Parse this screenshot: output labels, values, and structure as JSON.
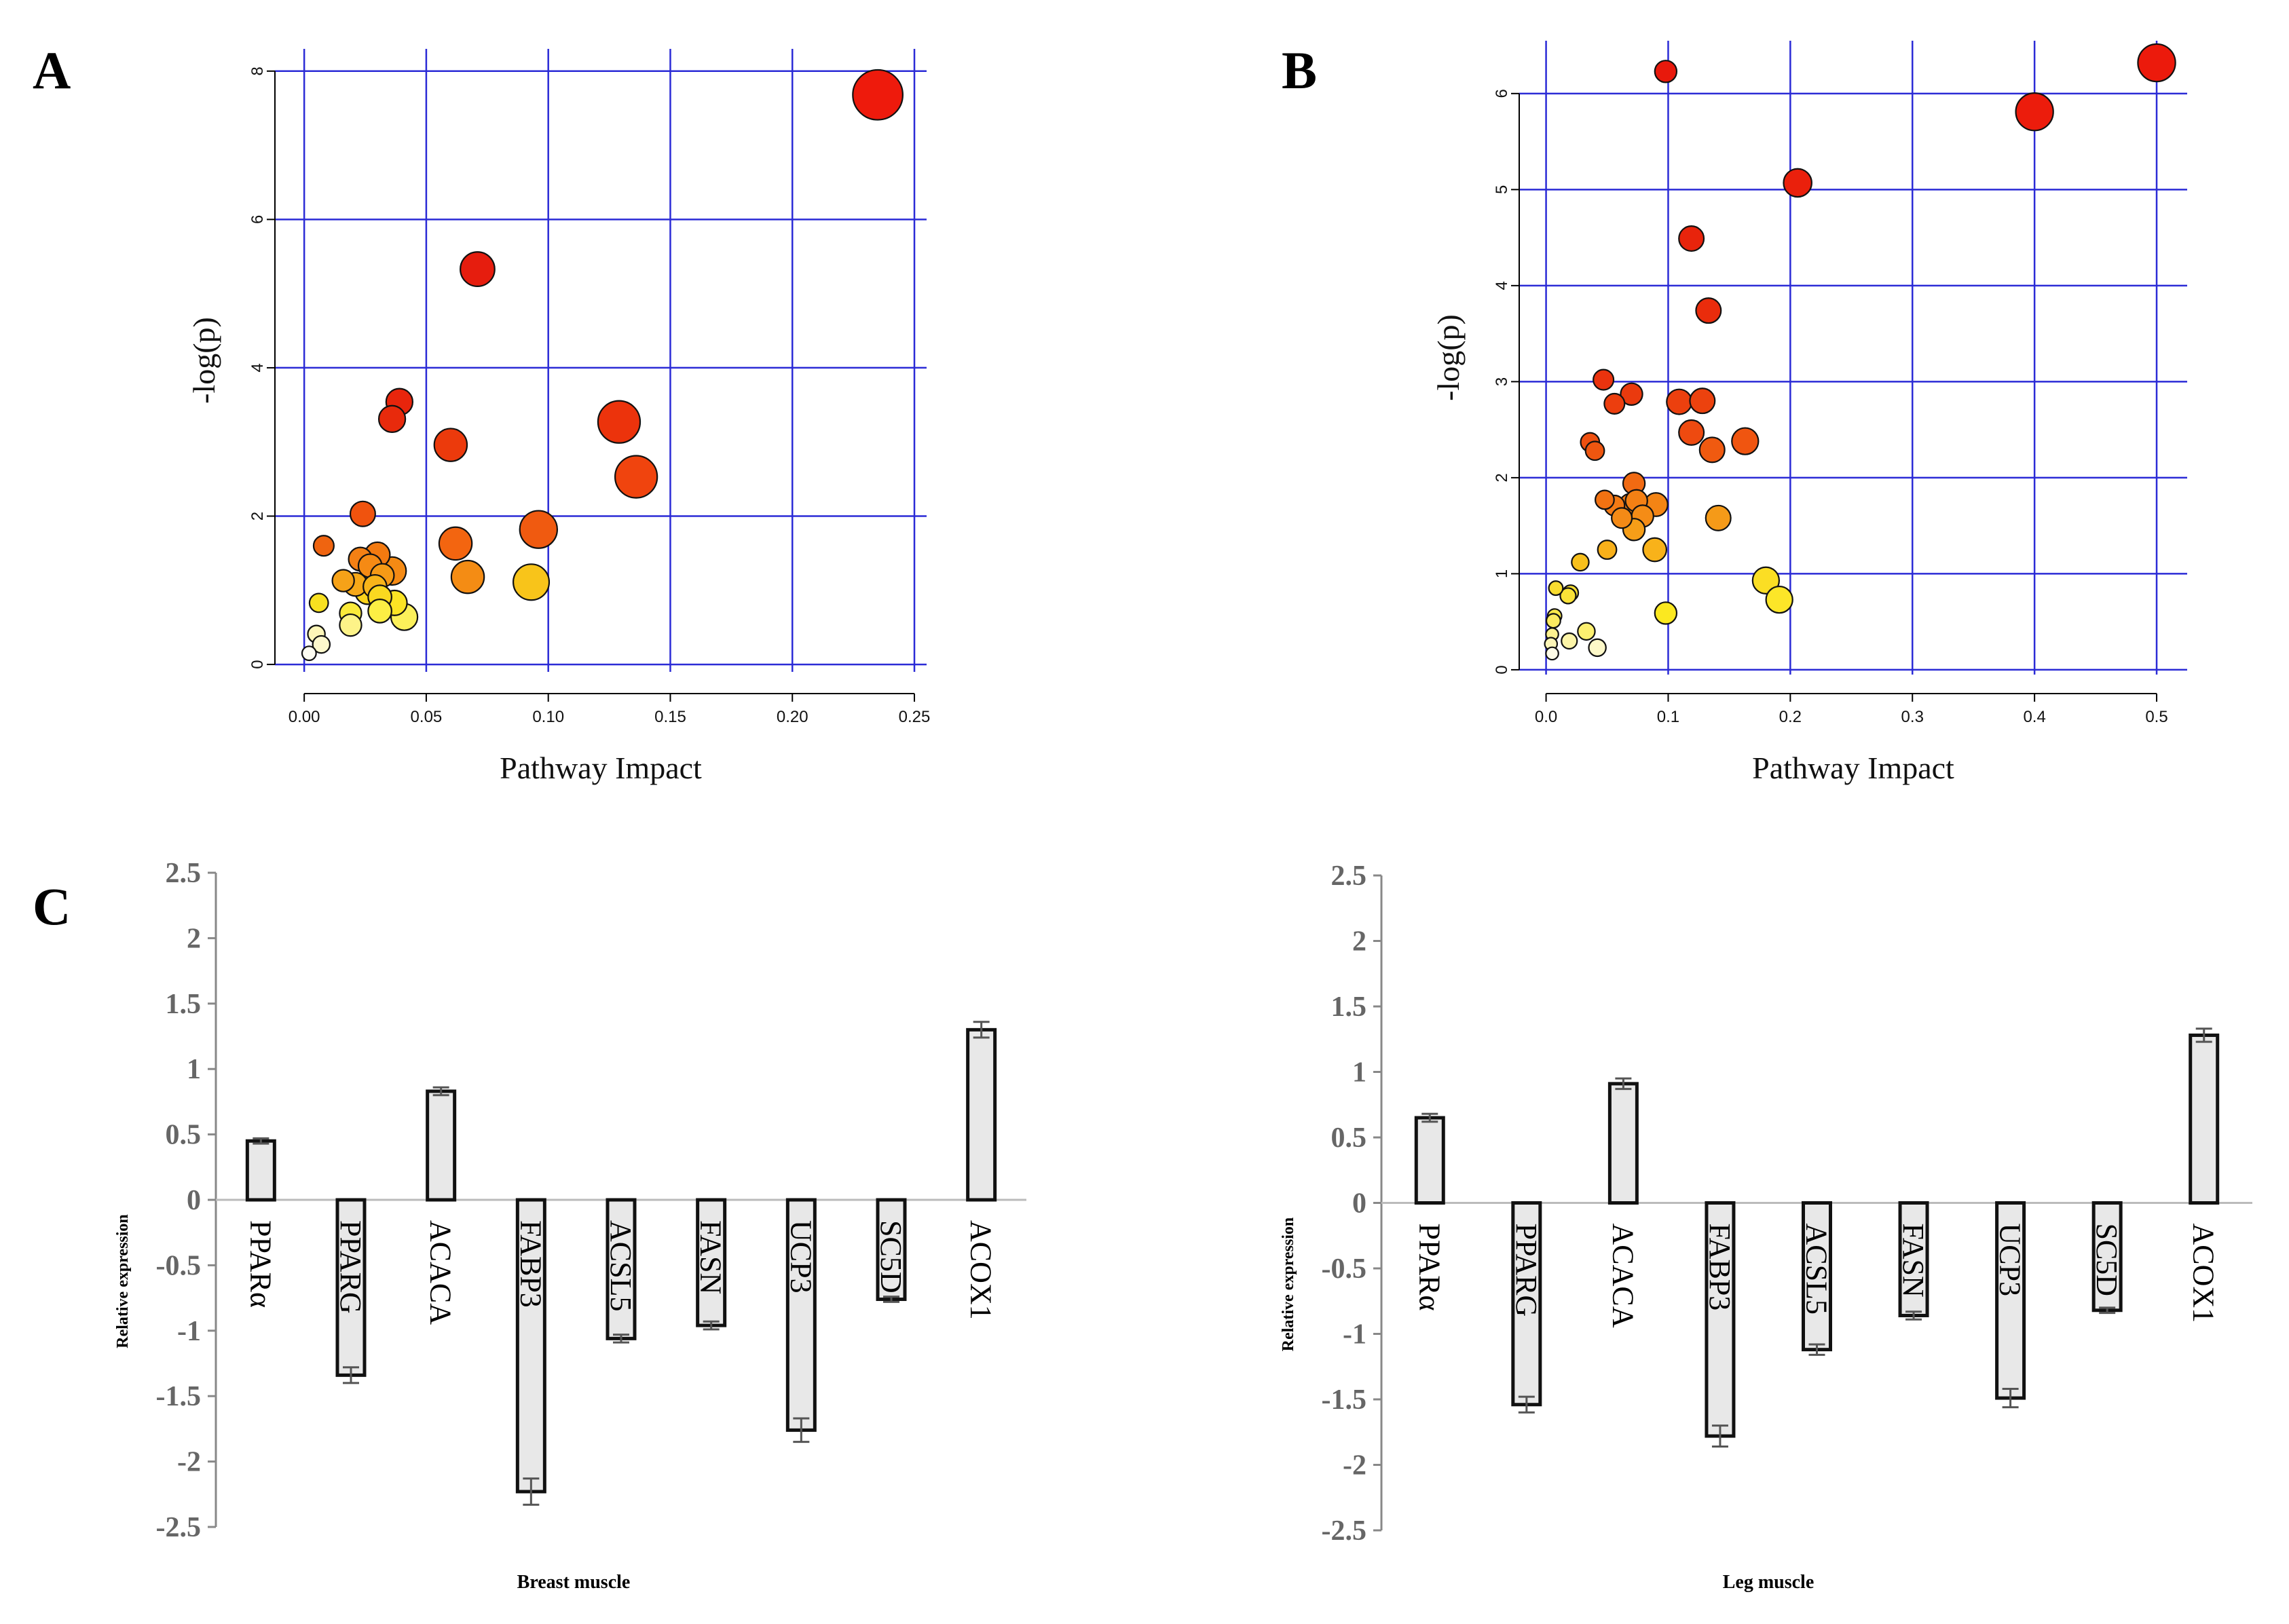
{
  "panels": {
    "A": "A",
    "B": "B",
    "C": "C"
  },
  "chart_data": [
    {
      "id": "A",
      "type": "scatter",
      "title": "",
      "xlabel": "Pathway Impact",
      "ylabel": "-log(p)",
      "xlim": [
        -0.012,
        0.255
      ],
      "ylim": [
        -0.1,
        8.3
      ],
      "xticks": [
        0.0,
        0.05,
        0.1,
        0.15,
        0.2,
        0.25
      ],
      "xtick_labels": [
        "0.00",
        "0.05",
        "0.10",
        "0.15",
        "0.20",
        "0.25"
      ],
      "yticks": [
        0,
        2,
        4,
        6,
        8
      ],
      "ytick_labels": [
        "0",
        "2",
        "4",
        "6",
        "8"
      ],
      "grid": true,
      "grid_color": "#2b2bd6",
      "points": [
        {
          "x": 0.235,
          "y": 7.68,
          "size": 3.2,
          "color": "#ee1a0c"
        },
        {
          "x": 0.071,
          "y": 5.33,
          "size": 2.2,
          "color": "#e61d0e"
        },
        {
          "x": 0.039,
          "y": 3.54,
          "size": 1.7,
          "color": "#e8250c"
        },
        {
          "x": 0.036,
          "y": 3.31,
          "size": 1.7,
          "color": "#e82a0c"
        },
        {
          "x": 0.129,
          "y": 3.27,
          "size": 2.7,
          "color": "#ec330c"
        },
        {
          "x": 0.06,
          "y": 2.96,
          "size": 2.1,
          "color": "#ec3a0c"
        },
        {
          "x": 0.136,
          "y": 2.53,
          "size": 2.7,
          "color": "#f0440e"
        },
        {
          "x": 0.024,
          "y": 2.03,
          "size": 1.6,
          "color": "#f0530e"
        },
        {
          "x": 0.096,
          "y": 1.82,
          "size": 2.4,
          "color": "#f05a10"
        },
        {
          "x": 0.062,
          "y": 1.63,
          "size": 2.1,
          "color": "#f36510"
        },
        {
          "x": 0.008,
          "y": 1.6,
          "size": 1.3,
          "color": "#ef6410"
        },
        {
          "x": 0.03,
          "y": 1.48,
          "size": 1.6,
          "color": "#f37a10"
        },
        {
          "x": 0.023,
          "y": 1.42,
          "size": 1.5,
          "color": "#f48014"
        },
        {
          "x": 0.027,
          "y": 1.33,
          "size": 1.5,
          "color": "#f58a14"
        },
        {
          "x": 0.036,
          "y": 1.26,
          "size": 1.8,
          "color": "#f48a14"
        },
        {
          "x": 0.067,
          "y": 1.18,
          "size": 2.1,
          "color": "#f48c14"
        },
        {
          "x": 0.032,
          "y": 1.2,
          "size": 1.5,
          "color": "#f69a16"
        },
        {
          "x": 0.016,
          "y": 1.13,
          "size": 1.4,
          "color": "#f6a218"
        },
        {
          "x": 0.021,
          "y": 1.08,
          "size": 1.5,
          "color": "#f6a818"
        },
        {
          "x": 0.029,
          "y": 1.05,
          "size": 1.5,
          "color": "#f8b41a"
        },
        {
          "x": 0.093,
          "y": 1.11,
          "size": 2.3,
          "color": "#f8c41a"
        },
        {
          "x": 0.026,
          "y": 0.98,
          "size": 1.6,
          "color": "#fad21c"
        },
        {
          "x": 0.031,
          "y": 0.91,
          "size": 1.5,
          "color": "#fad820"
        },
        {
          "x": 0.037,
          "y": 0.83,
          "size": 1.6,
          "color": "#fbe424"
        },
        {
          "x": 0.006,
          "y": 0.83,
          "size": 1.2,
          "color": "#f8e020"
        },
        {
          "x": 0.019,
          "y": 0.69,
          "size": 1.4,
          "color": "#fbea3a"
        },
        {
          "x": 0.031,
          "y": 0.72,
          "size": 1.5,
          "color": "#fcee44"
        },
        {
          "x": 0.041,
          "y": 0.64,
          "size": 1.7,
          "color": "#fcf05a"
        },
        {
          "x": 0.019,
          "y": 0.53,
          "size": 1.4,
          "color": "#fdf388"
        },
        {
          "x": 0.005,
          "y": 0.41,
          "size": 1.1,
          "color": "#fdf6b8"
        },
        {
          "x": 0.007,
          "y": 0.27,
          "size": 1.1,
          "color": "#fdf8cc"
        },
        {
          "x": 0.002,
          "y": 0.15,
          "size": 0.9,
          "color": "#fefdf2"
        }
      ]
    },
    {
      "id": "B",
      "type": "scatter",
      "title": "",
      "xlabel": "Pathway Impact",
      "ylabel": "-log(p)",
      "xlim": [
        -0.022,
        0.525
      ],
      "ylim": [
        -0.05,
        6.55
      ],
      "xticks": [
        0.0,
        0.1,
        0.2,
        0.3,
        0.4,
        0.5
      ],
      "xtick_labels": [
        "0.0",
        "0.1",
        "0.2",
        "0.3",
        "0.4",
        "0.5"
      ],
      "yticks": [
        0,
        1,
        2,
        3,
        4,
        5,
        6
      ],
      "ytick_labels": [
        "0",
        "1",
        "2",
        "3",
        "4",
        "5",
        "6"
      ],
      "grid": true,
      "grid_color": "#2b2bd6",
      "points": [
        {
          "x": 0.5,
          "y": 6.32,
          "size": 2.4,
          "color": "#ec1a0c"
        },
        {
          "x": 0.098,
          "y": 6.23,
          "size": 1.4,
          "color": "#e8190c"
        },
        {
          "x": 0.4,
          "y": 5.81,
          "size": 2.4,
          "color": "#ec1c0c"
        },
        {
          "x": 0.206,
          "y": 5.07,
          "size": 1.8,
          "color": "#ea200c"
        },
        {
          "x": 0.119,
          "y": 4.49,
          "size": 1.6,
          "color": "#e8240c"
        },
        {
          "x": 0.133,
          "y": 3.74,
          "size": 1.6,
          "color": "#ea2c0c"
        },
        {
          "x": 0.047,
          "y": 3.02,
          "size": 1.3,
          "color": "#ea330e"
        },
        {
          "x": 0.07,
          "y": 2.87,
          "size": 1.4,
          "color": "#ea3a0e"
        },
        {
          "x": 0.056,
          "y": 2.77,
          "size": 1.3,
          "color": "#ec3e0e"
        },
        {
          "x": 0.109,
          "y": 2.79,
          "size": 1.6,
          "color": "#ec400e"
        },
        {
          "x": 0.128,
          "y": 2.8,
          "size": 1.6,
          "color": "#ec420e"
        },
        {
          "x": 0.119,
          "y": 2.47,
          "size": 1.6,
          "color": "#ee4a10"
        },
        {
          "x": 0.163,
          "y": 2.38,
          "size": 1.7,
          "color": "#f05510"
        },
        {
          "x": 0.036,
          "y": 2.37,
          "size": 1.2,
          "color": "#ee5010"
        },
        {
          "x": 0.136,
          "y": 2.29,
          "size": 1.6,
          "color": "#f05a10"
        },
        {
          "x": 0.04,
          "y": 2.28,
          "size": 1.2,
          "color": "#ee5610"
        },
        {
          "x": 0.072,
          "y": 1.94,
          "size": 1.4,
          "color": "#f16a12"
        },
        {
          "x": 0.048,
          "y": 1.77,
          "size": 1.2,
          "color": "#f27212"
        },
        {
          "x": 0.056,
          "y": 1.71,
          "size": 1.3,
          "color": "#f37a14"
        },
        {
          "x": 0.069,
          "y": 1.72,
          "size": 1.4,
          "color": "#f37c14"
        },
        {
          "x": 0.074,
          "y": 1.76,
          "size": 1.4,
          "color": "#f38014"
        },
        {
          "x": 0.09,
          "y": 1.72,
          "size": 1.5,
          "color": "#f48414"
        },
        {
          "x": 0.062,
          "y": 1.58,
          "size": 1.3,
          "color": "#f48a16"
        },
        {
          "x": 0.079,
          "y": 1.6,
          "size": 1.4,
          "color": "#f58c16"
        },
        {
          "x": 0.141,
          "y": 1.58,
          "size": 1.6,
          "color": "#f59a18"
        },
        {
          "x": 0.072,
          "y": 1.46,
          "size": 1.4,
          "color": "#f69e18"
        },
        {
          "x": 0.05,
          "y": 1.25,
          "size": 1.2,
          "color": "#f8b01a"
        },
        {
          "x": 0.089,
          "y": 1.25,
          "size": 1.5,
          "color": "#f8b21a"
        },
        {
          "x": 0.028,
          "y": 1.12,
          "size": 1.1,
          "color": "#f8c01c"
        },
        {
          "x": 0.18,
          "y": 0.93,
          "size": 1.7,
          "color": "#fbde24"
        },
        {
          "x": 0.191,
          "y": 0.73,
          "size": 1.7,
          "color": "#fce628"
        },
        {
          "x": 0.098,
          "y": 0.59,
          "size": 1.4,
          "color": "#fbe820"
        },
        {
          "x": 0.02,
          "y": 0.8,
          "size": 1.0,
          "color": "#f8e030"
        },
        {
          "x": 0.018,
          "y": 0.77,
          "size": 1.0,
          "color": "#fae238"
        },
        {
          "x": 0.008,
          "y": 0.85,
          "size": 0.9,
          "color": "#f8dc30"
        },
        {
          "x": 0.007,
          "y": 0.56,
          "size": 0.9,
          "color": "#fce84a"
        },
        {
          "x": 0.006,
          "y": 0.51,
          "size": 0.9,
          "color": "#fcea60"
        },
        {
          "x": 0.033,
          "y": 0.4,
          "size": 1.1,
          "color": "#fdf070"
        },
        {
          "x": 0.005,
          "y": 0.37,
          "size": 0.8,
          "color": "#fdf290"
        },
        {
          "x": 0.019,
          "y": 0.3,
          "size": 1.0,
          "color": "#fdf5a8"
        },
        {
          "x": 0.004,
          "y": 0.27,
          "size": 0.8,
          "color": "#fdf6b8"
        },
        {
          "x": 0.042,
          "y": 0.23,
          "size": 1.1,
          "color": "#fdf8c8"
        },
        {
          "x": 0.005,
          "y": 0.17,
          "size": 0.8,
          "color": "#fefce8"
        }
      ]
    },
    {
      "id": "C1",
      "type": "bar",
      "title": "",
      "xlabel": "Breast muscle",
      "ylabel": "Relative expression",
      "ylim": [
        -2.5,
        2.5
      ],
      "yticks": [
        2.5,
        2,
        1.5,
        1,
        0.5,
        0,
        -0.5,
        -1,
        -1.5,
        -2,
        -2.5
      ],
      "ytick_labels": [
        "2.5",
        "2",
        "1.5",
        "1",
        "0.5",
        "0",
        "-0.5",
        "-1",
        "-1.5",
        "-2",
        "-2.5"
      ],
      "categories": [
        "PPARα",
        "PPARG",
        "ACACA",
        "FABP3",
        "ACSL5",
        "FASN",
        "UCP3",
        "SC5D",
        "ACOX1"
      ],
      "values": [
        0.45,
        -1.34,
        0.83,
        -2.23,
        -1.06,
        -0.96,
        -1.76,
        -0.76,
        1.3
      ],
      "errors": [
        0.02,
        0.06,
        0.03,
        0.1,
        0.03,
        0.03,
        0.09,
        0.02,
        0.06
      ],
      "bar_color": "#e8e8e8"
    },
    {
      "id": "C2",
      "type": "bar",
      "title": "",
      "xlabel": "Leg muscle",
      "ylabel": "Relative expression",
      "ylim": [
        -2.5,
        2.5
      ],
      "yticks": [
        2.5,
        2,
        1.5,
        1,
        0.5,
        0,
        -0.5,
        -1,
        -1.5,
        -2,
        -2.5
      ],
      "ytick_labels": [
        "2.5",
        "2",
        "1.5",
        "1",
        "0.5",
        "0",
        "-0.5",
        "-1",
        "-1.5",
        "-2",
        "-2.5"
      ],
      "categories": [
        "PPARα",
        "PPARG",
        "ACACA",
        "FABP3",
        "ACSL5",
        "FASN",
        "UCP3",
        "SC5D",
        "ACOX1"
      ],
      "values": [
        0.65,
        -1.54,
        0.91,
        -1.78,
        -1.12,
        -0.86,
        -1.49,
        -0.82,
        1.28
      ],
      "errors": [
        0.03,
        0.06,
        0.04,
        0.08,
        0.04,
        0.03,
        0.07,
        0.02,
        0.05
      ],
      "bar_color": "#e8e8e8"
    }
  ]
}
